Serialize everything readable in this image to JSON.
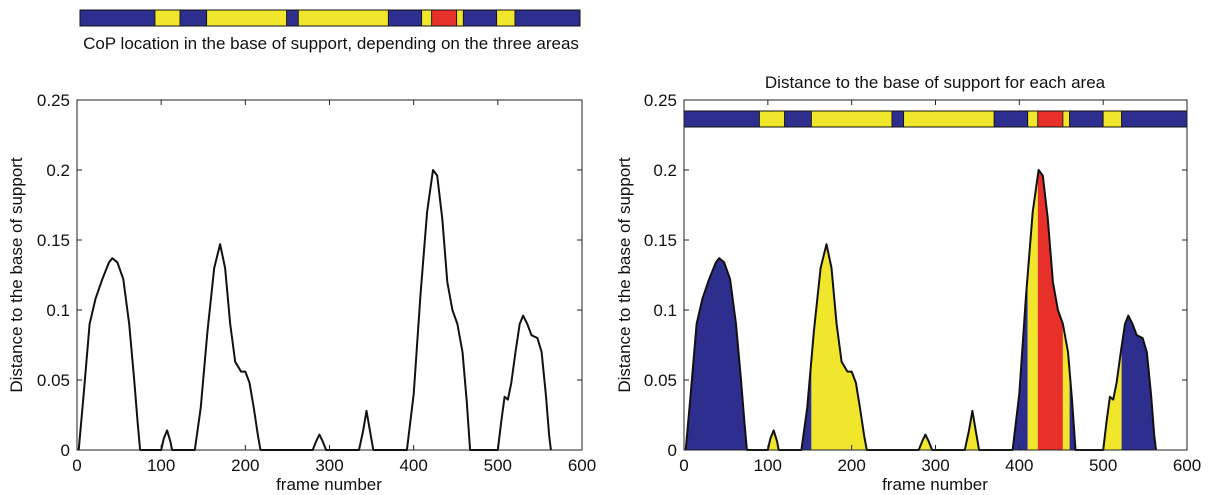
{
  "colors": {
    "low": "#2e2e8e",
    "mid": "#f0e62c",
    "high": "#e8302a",
    "line": "#111111"
  },
  "top_bar": {
    "caption": "CoP location in the base of support, depending on the three areas"
  },
  "chart_data": [
    {
      "type": "line",
      "title": "",
      "xlabel": "frame number",
      "ylabel": "Distance to the base of support",
      "xlim": [
        0,
        600
      ],
      "ylim": [
        0,
        0.25
      ],
      "xticks": [
        "0",
        "100",
        "200",
        "300",
        "400",
        "500",
        "600"
      ],
      "yticks": [
        "0",
        "0.05",
        "0.1",
        "0.15",
        "0.2",
        "0.25"
      ],
      "grid": false,
      "series": [
        {
          "values": [
            [
              2,
              0
            ],
            [
              8,
              0.04
            ],
            [
              15,
              0.09
            ],
            [
              22,
              0.108
            ],
            [
              30,
              0.122
            ],
            [
              38,
              0.134
            ],
            [
              42,
              0.137
            ],
            [
              48,
              0.134
            ],
            [
              55,
              0.122
            ],
            [
              62,
              0.09
            ],
            [
              68,
              0.05
            ],
            [
              72,
              0.02
            ],
            [
              75,
              0
            ],
            [
              80,
              0
            ],
            [
              100,
              0
            ],
            [
              103,
              0.008
            ],
            [
              107,
              0.014
            ],
            [
              111,
              0.006
            ],
            [
              113,
              0
            ],
            [
              140,
              0
            ],
            [
              147,
              0.03
            ],
            [
              155,
              0.085
            ],
            [
              163,
              0.13
            ],
            [
              170,
              0.147
            ],
            [
              176,
              0.13
            ],
            [
              182,
              0.09
            ],
            [
              188,
              0.063
            ],
            [
              195,
              0.056
            ],
            [
              200,
              0.056
            ],
            [
              205,
              0.048
            ],
            [
              210,
              0.03
            ],
            [
              215,
              0.01
            ],
            [
              218,
              0
            ],
            [
              280,
              0
            ],
            [
              284,
              0.006
            ],
            [
              288,
              0.011
            ],
            [
              292,
              0.006
            ],
            [
              296,
              0
            ],
            [
              335,
              0
            ],
            [
              340,
              0.014
            ],
            [
              344,
              0.028
            ],
            [
              348,
              0.014
            ],
            [
              352,
              0
            ],
            [
              392,
              0
            ],
            [
              400,
              0.04
            ],
            [
              408,
              0.11
            ],
            [
              416,
              0.17
            ],
            [
              423,
              0.2
            ],
            [
              428,
              0.196
            ],
            [
              434,
              0.165
            ],
            [
              440,
              0.12
            ],
            [
              446,
              0.1
            ],
            [
              452,
              0.09
            ],
            [
              458,
              0.07
            ],
            [
              463,
              0.035
            ],
            [
              467,
              0
            ],
            [
              500,
              0
            ],
            [
              504,
              0.02
            ],
            [
              508,
              0.038
            ],
            [
              512,
              0.036
            ],
            [
              516,
              0.048
            ],
            [
              521,
              0.07
            ],
            [
              526,
              0.09
            ],
            [
              530,
              0.096
            ],
            [
              535,
              0.09
            ],
            [
              540,
              0.082
            ],
            [
              547,
              0.08
            ],
            [
              552,
              0.07
            ],
            [
              557,
              0.04
            ],
            [
              561,
              0.01
            ],
            [
              563,
              0
            ]
          ]
        }
      ]
    },
    {
      "type": "area",
      "title": "Distance to the base of support for each area",
      "xlabel": "frame number",
      "ylabel": "Distance to the base of support",
      "xlim": [
        0,
        600
      ],
      "ylim": [
        0,
        0.25
      ],
      "xticks": [
        "0",
        "100",
        "200",
        "300",
        "400",
        "500",
        "600"
      ],
      "yticks": [
        "0",
        "0.05",
        "0.1",
        "0.15",
        "0.2",
        "0.25"
      ],
      "grid": false,
      "fill_ranges": [
        {
          "from": 0,
          "to": 90,
          "area": "low"
        },
        {
          "from": 90,
          "to": 120,
          "area": "mid"
        },
        {
          "from": 120,
          "to": 152,
          "area": "low"
        },
        {
          "from": 152,
          "to": 248,
          "area": "mid"
        },
        {
          "from": 248,
          "to": 262,
          "area": "low"
        },
        {
          "from": 262,
          "to": 370,
          "area": "mid"
        },
        {
          "from": 370,
          "to": 410,
          "area": "low"
        },
        {
          "from": 410,
          "to": 422,
          "area": "mid"
        },
        {
          "from": 422,
          "to": 452,
          "area": "high"
        },
        {
          "from": 452,
          "to": 460,
          "area": "mid"
        },
        {
          "from": 460,
          "to": 500,
          "area": "low"
        },
        {
          "from": 500,
          "to": 522,
          "area": "mid"
        },
        {
          "from": 522,
          "to": 600,
          "area": "low"
        }
      ]
    }
  ],
  "area_segments": [
    {
      "from": 0,
      "to": 90,
      "area": "low"
    },
    {
      "from": 90,
      "to": 120,
      "area": "mid"
    },
    {
      "from": 120,
      "to": 152,
      "area": "low"
    },
    {
      "from": 152,
      "to": 248,
      "area": "mid"
    },
    {
      "from": 248,
      "to": 262,
      "area": "low"
    },
    {
      "from": 262,
      "to": 370,
      "area": "mid"
    },
    {
      "from": 370,
      "to": 410,
      "area": "low"
    },
    {
      "from": 410,
      "to": 422,
      "area": "mid"
    },
    {
      "from": 422,
      "to": 452,
      "area": "high"
    },
    {
      "from": 452,
      "to": 460,
      "area": "mid"
    },
    {
      "from": 460,
      "to": 500,
      "area": "low"
    },
    {
      "from": 500,
      "to": 522,
      "area": "mid"
    },
    {
      "from": 522,
      "to": 600,
      "area": "low"
    }
  ]
}
